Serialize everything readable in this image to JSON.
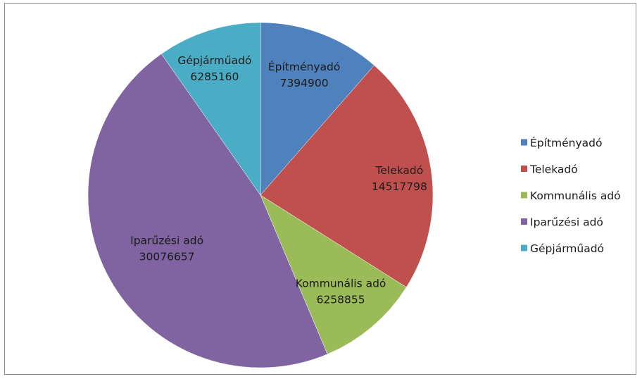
{
  "chart_data": {
    "type": "pie",
    "title": "",
    "categories": [
      "Építményadó",
      "Telekadó",
      "Kommunális adó",
      "Iparűzési adó",
      "Gépjárműadó"
    ],
    "values": [
      7394900,
      14517798,
      6258855,
      30076657,
      6285160
    ],
    "colors": [
      "#4f81bd",
      "#c0504d",
      "#9bbb59",
      "#8064a2",
      "#4bacc6"
    ],
    "data_labels": [
      {
        "name": "Építményadó",
        "value": "7394900"
      },
      {
        "name": "Telekadó",
        "value": "14517798"
      },
      {
        "name": "Kommunális adó",
        "value": "6258855"
      },
      {
        "name": "Iparűzési adó",
        "value": "30076657"
      },
      {
        "name": "Gépjárműadó",
        "value": "6285160"
      }
    ],
    "start_angle": "12 o'clock",
    "direction": "clockwise",
    "legend": {
      "position": "right",
      "entries": [
        "Építményadó",
        "Telekadó",
        "Kommunális adó",
        "Iparűzési adó",
        "Gépjárműadó"
      ]
    }
  }
}
